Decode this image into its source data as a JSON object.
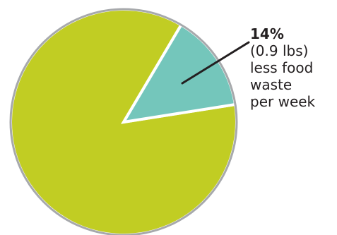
{
  "chart_data": {
    "type": "pie",
    "slices": [
      {
        "value": 86,
        "color": "#c1cd23"
      },
      {
        "value": 14,
        "color": "#74c6bb"
      }
    ],
    "border_color": "#a7a9ac",
    "annotation": {
      "percent": "14%",
      "lines": [
        "(0.9 lbs)",
        "less food",
        "waste",
        "per week"
      ]
    }
  }
}
